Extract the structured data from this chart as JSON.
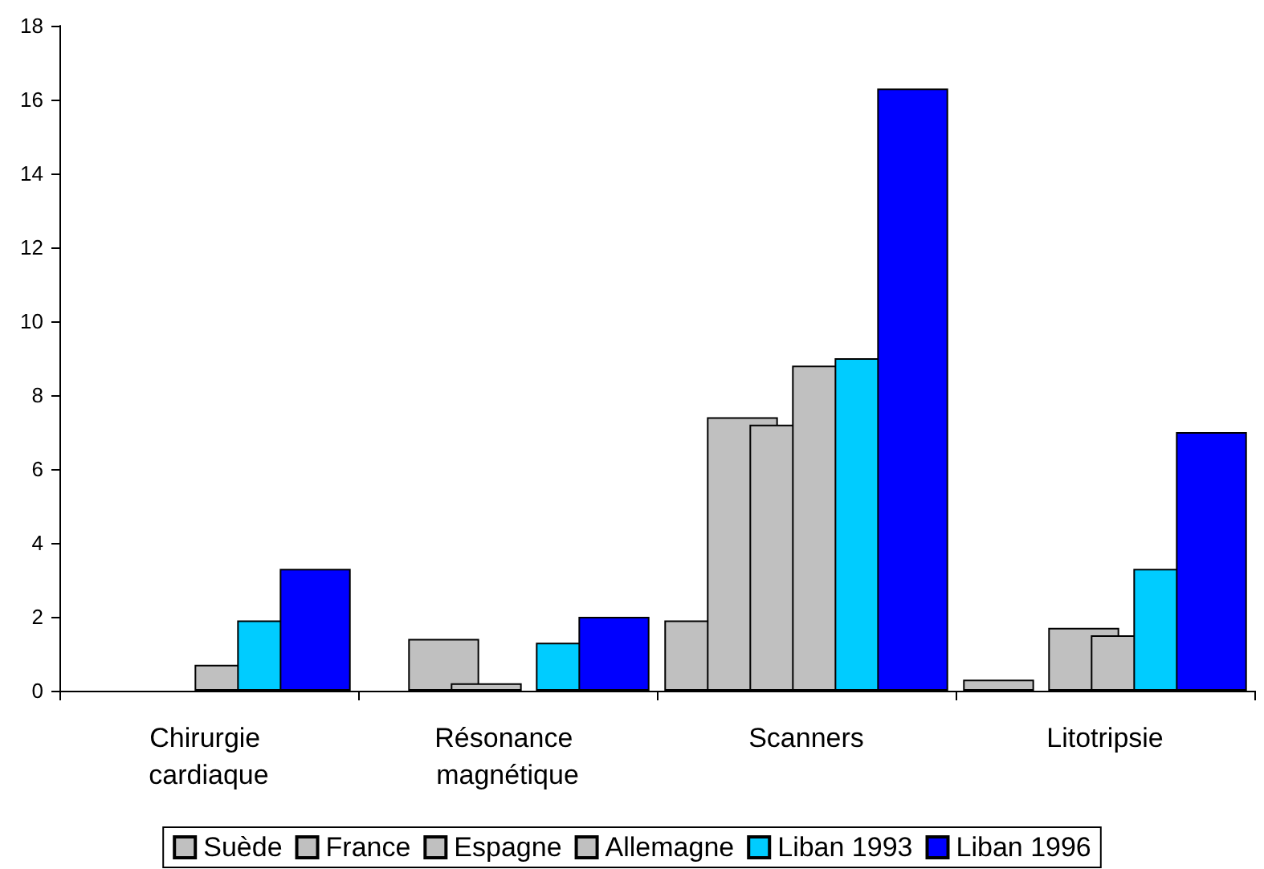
{
  "chart_data": {
    "type": "bar",
    "categories": [
      "Chirurgie cardiaque",
      "Résonance magnétique",
      "Scanners",
      "Litotripsie"
    ],
    "series": [
      {
        "name": "Suède",
        "color": "#c0c0c0",
        "values": [
          null,
          null,
          1.9,
          0.3
        ]
      },
      {
        "name": "France",
        "color": "#c0c0c0",
        "values": [
          null,
          1.4,
          7.4,
          null
        ]
      },
      {
        "name": "Espagne",
        "color": "#c0c0c0",
        "values": [
          null,
          0.2,
          7.2,
          1.7
        ]
      },
      {
        "name": "Allemagne",
        "color": "#c0c0c0",
        "values": [
          0.7,
          null,
          8.8,
          1.5
        ]
      },
      {
        "name": "Liban 1993",
        "color": "#00ccff",
        "values": [
          1.9,
          1.3,
          9.0,
          3.3
        ]
      },
      {
        "name": "Liban 1996",
        "color": "#0000ff",
        "values": [
          3.3,
          2.0,
          16.3,
          7.0
        ]
      }
    ],
    "ylim": [
      0,
      18
    ],
    "yticks": [
      0,
      2,
      4,
      6,
      8,
      10,
      12,
      14,
      16,
      18
    ],
    "grid": false,
    "legend": "bottom"
  }
}
